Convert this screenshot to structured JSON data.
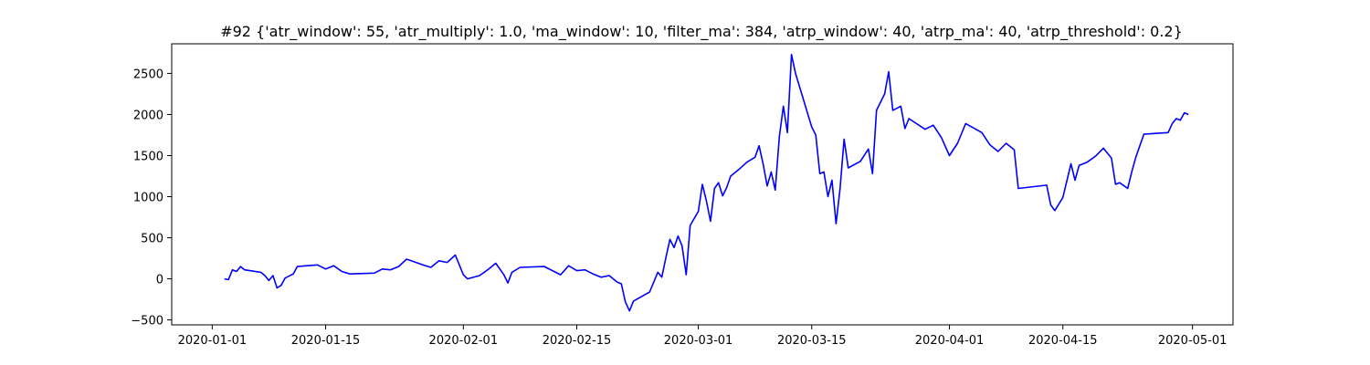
{
  "chart_data": {
    "type": "line",
    "title": "#92 {'atr_window': 55, 'atr_multiply': 1.0, 'ma_window': 10, 'filter_ma': 384, 'atrp_window': 40, 'atrp_ma': 40, 'atrp_threshold': 0.2}",
    "xlabel": "",
    "ylabel": "",
    "xlim": [
      "2019-12-27",
      "2020-05-06"
    ],
    "ylim": [
      -560,
      2860
    ],
    "x_ticks": [
      "2020-01-01",
      "2020-01-15",
      "2020-02-01",
      "2020-02-15",
      "2020-03-01",
      "2020-03-15",
      "2020-04-01",
      "2020-04-15",
      "2020-05-01"
    ],
    "y_ticks": [
      -500,
      0,
      500,
      1000,
      1500,
      2000,
      2500
    ],
    "grid": false,
    "legend": "none",
    "series": [
      {
        "color": "#0000ff",
        "points": [
          [
            "2020-01-02T12:00",
            0
          ],
          [
            "2020-01-03",
            -10
          ],
          [
            "2020-01-03T12:00",
            110
          ],
          [
            "2020-01-04",
            90
          ],
          [
            "2020-01-04T12:00",
            150
          ],
          [
            "2020-01-05",
            110
          ],
          [
            "2020-01-07",
            80
          ],
          [
            "2020-01-07T12:00",
            40
          ],
          [
            "2020-01-08",
            -20
          ],
          [
            "2020-01-08T12:00",
            40
          ],
          [
            "2020-01-09",
            -110
          ],
          [
            "2020-01-09T12:00",
            -80
          ],
          [
            "2020-01-10",
            10
          ],
          [
            "2020-01-11",
            60
          ],
          [
            "2020-01-11T12:00",
            150
          ],
          [
            "2020-01-14",
            170
          ],
          [
            "2020-01-15",
            120
          ],
          [
            "2020-01-16",
            160
          ],
          [
            "2020-01-17",
            90
          ],
          [
            "2020-01-18",
            60
          ],
          [
            "2020-01-21",
            70
          ],
          [
            "2020-01-22",
            120
          ],
          [
            "2020-01-23",
            110
          ],
          [
            "2020-01-24",
            150
          ],
          [
            "2020-01-25",
            240
          ],
          [
            "2020-01-27",
            170
          ],
          [
            "2020-01-28",
            140
          ],
          [
            "2020-01-29",
            220
          ],
          [
            "2020-01-30",
            200
          ],
          [
            "2020-01-31",
            290
          ],
          [
            "2020-02-01",
            50
          ],
          [
            "2020-02-01T12:00",
            0
          ],
          [
            "2020-02-03",
            40
          ],
          [
            "2020-02-04",
            110
          ],
          [
            "2020-02-05",
            190
          ],
          [
            "2020-02-06",
            50
          ],
          [
            "2020-02-06T12:00",
            -50
          ],
          [
            "2020-02-07",
            80
          ],
          [
            "2020-02-08",
            140
          ],
          [
            "2020-02-11",
            150
          ],
          [
            "2020-02-12",
            100
          ],
          [
            "2020-02-13",
            50
          ],
          [
            "2020-02-14",
            160
          ],
          [
            "2020-02-15",
            100
          ],
          [
            "2020-02-16",
            110
          ],
          [
            "2020-02-17",
            60
          ],
          [
            "2020-02-18",
            20
          ],
          [
            "2020-02-19",
            40
          ],
          [
            "2020-02-20",
            -40
          ],
          [
            "2020-02-20T12:00",
            -60
          ],
          [
            "2020-02-21",
            -280
          ],
          [
            "2020-02-21T12:00",
            -390
          ],
          [
            "2020-02-22",
            -270
          ],
          [
            "2020-02-24",
            -160
          ],
          [
            "2020-02-25",
            80
          ],
          [
            "2020-02-25T12:00",
            20
          ],
          [
            "2020-02-26",
            260
          ],
          [
            "2020-02-26T12:00",
            480
          ],
          [
            "2020-02-27",
            380
          ],
          [
            "2020-02-27T12:00",
            520
          ],
          [
            "2020-02-28",
            400
          ],
          [
            "2020-02-28T12:00",
            50
          ],
          [
            "2020-02-29",
            650
          ],
          [
            "2020-03-01",
            820
          ],
          [
            "2020-03-01T12:00",
            1150
          ],
          [
            "2020-03-02",
            950
          ],
          [
            "2020-03-02T12:00",
            700
          ],
          [
            "2020-03-03",
            1100
          ],
          [
            "2020-03-03T12:00",
            1170
          ],
          [
            "2020-03-04",
            1010
          ],
          [
            "2020-03-04T12:00",
            1110
          ],
          [
            "2020-03-05",
            1250
          ],
          [
            "2020-03-06",
            1330
          ],
          [
            "2020-03-07",
            1420
          ],
          [
            "2020-03-08",
            1480
          ],
          [
            "2020-03-08T12:00",
            1620
          ],
          [
            "2020-03-09",
            1400
          ],
          [
            "2020-03-09T12:00",
            1130
          ],
          [
            "2020-03-10",
            1300
          ],
          [
            "2020-03-10T12:00",
            1080
          ],
          [
            "2020-03-11",
            1730
          ],
          [
            "2020-03-11T12:00",
            2100
          ],
          [
            "2020-03-12",
            1780
          ],
          [
            "2020-03-12T12:00",
            2730
          ],
          [
            "2020-03-13",
            2500
          ],
          [
            "2020-03-15",
            1850
          ],
          [
            "2020-03-15T12:00",
            1750
          ],
          [
            "2020-03-16",
            1280
          ],
          [
            "2020-03-16T12:00",
            1300
          ],
          [
            "2020-03-17",
            1000
          ],
          [
            "2020-03-17T12:00",
            1200
          ],
          [
            "2020-03-18",
            670
          ],
          [
            "2020-03-18T12:00",
            1100
          ],
          [
            "2020-03-19",
            1700
          ],
          [
            "2020-03-19T12:00",
            1350
          ],
          [
            "2020-03-21",
            1430
          ],
          [
            "2020-03-22",
            1580
          ],
          [
            "2020-03-22T12:00",
            1280
          ],
          [
            "2020-03-23",
            2050
          ],
          [
            "2020-03-24",
            2250
          ],
          [
            "2020-03-24T12:00",
            2520
          ],
          [
            "2020-03-25",
            2050
          ],
          [
            "2020-03-26",
            2100
          ],
          [
            "2020-03-26T12:00",
            1830
          ],
          [
            "2020-03-27",
            1950
          ],
          [
            "2020-03-29",
            1820
          ],
          [
            "2020-03-30",
            1870
          ],
          [
            "2020-03-31",
            1720
          ],
          [
            "2020-04-01",
            1500
          ],
          [
            "2020-04-02",
            1650
          ],
          [
            "2020-04-03",
            1890
          ],
          [
            "2020-04-05",
            1780
          ],
          [
            "2020-04-06",
            1630
          ],
          [
            "2020-04-07",
            1550
          ],
          [
            "2020-04-08",
            1650
          ],
          [
            "2020-04-09",
            1570
          ],
          [
            "2020-04-09T12:00",
            1100
          ],
          [
            "2020-04-13",
            1140
          ],
          [
            "2020-04-13T12:00",
            900
          ],
          [
            "2020-04-14",
            830
          ],
          [
            "2020-04-15",
            990
          ],
          [
            "2020-04-16",
            1400
          ],
          [
            "2020-04-16T12:00",
            1200
          ],
          [
            "2020-04-17",
            1380
          ],
          [
            "2020-04-18",
            1420
          ],
          [
            "2020-04-19",
            1490
          ],
          [
            "2020-04-20",
            1590
          ],
          [
            "2020-04-21",
            1470
          ],
          [
            "2020-04-21T12:00",
            1150
          ],
          [
            "2020-04-22",
            1170
          ],
          [
            "2020-04-23",
            1100
          ],
          [
            "2020-04-23T12:00",
            1300
          ],
          [
            "2020-04-24",
            1480
          ],
          [
            "2020-04-25",
            1760
          ],
          [
            "2020-04-28",
            1780
          ],
          [
            "2020-04-28T12:00",
            1890
          ],
          [
            "2020-04-29",
            1950
          ],
          [
            "2020-04-29T12:00",
            1930
          ],
          [
            "2020-04-30",
            2020
          ],
          [
            "2020-04-30T12:00",
            2000
          ]
        ]
      }
    ]
  }
}
